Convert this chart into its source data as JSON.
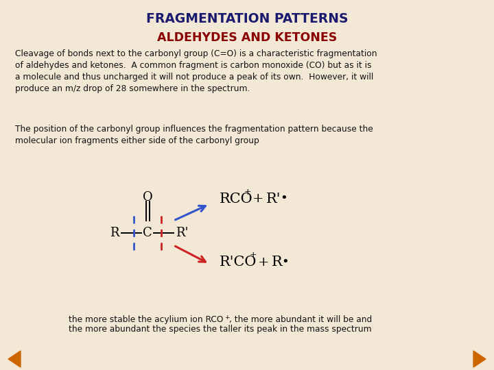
{
  "bg_color": "#f2e8d5",
  "title": "FRAGMENTATION PATTERNS",
  "title_color": "#1a1a6e",
  "subtitle": "ALDEHYDES AND KETONES",
  "subtitle_color": "#8b0000",
  "body_text1": "Cleavage of bonds next to the carbonyl group (C=O) is a characteristic fragmentation\nof aldehydes and ketones.  A common fragment is carbon monoxide (CO) but as it is\na molecule and thus uncharged it will not produce a peak of its own.  However, it will\nproduce an m/z drop of 28 somewhere in the spectrum.",
  "body_text2": "The position of the carbonyl group influences the fragmentation pattern because the\nmolecular ion fragments either side of the carbonyl group",
  "bottom_text1": "the more stable the acylium ion RCO",
  "bottom_text2": ", the more abundant it will be and",
  "bottom_text3": "the more abundant the species the taller its peak in the mass spectrum",
  "text_color": "#111111",
  "arrow_blue": "#3355cc",
  "arrow_red": "#cc2222",
  "dashed_blue": "#3355cc",
  "dashed_red": "#cc2222",
  "nav_color": "#cc6600"
}
